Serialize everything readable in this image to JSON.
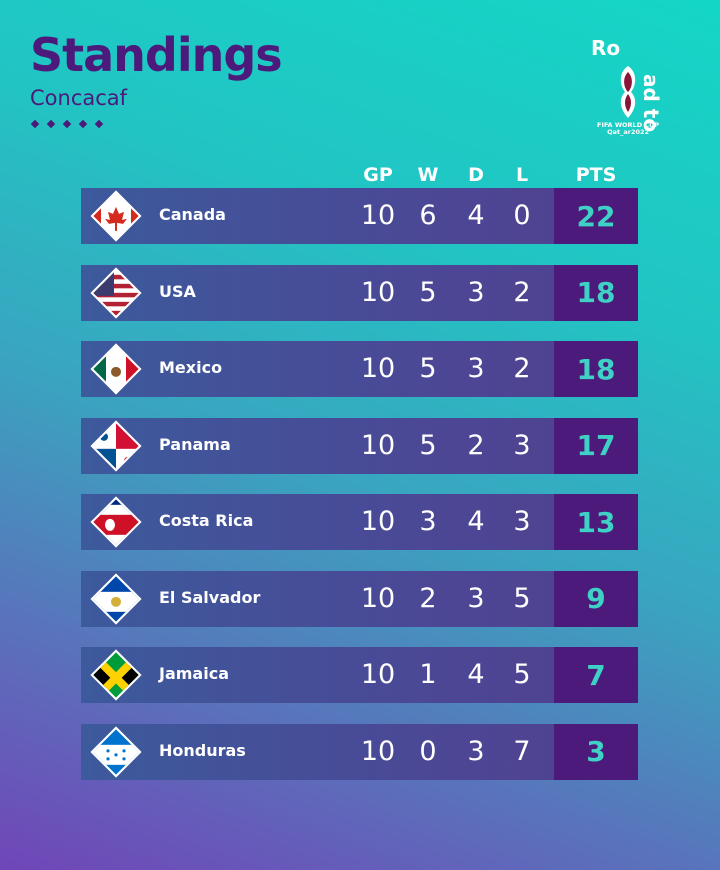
{
  "header": {
    "title": "Standings",
    "subtitle": "Concacaf"
  },
  "logo": {
    "word_top": "Ro",
    "word_side": "ad to",
    "line1": "FIFA WORLD CUP",
    "line2": "Qat_ar2022"
  },
  "columns": {
    "gp": "GP",
    "w": "W",
    "d": "D",
    "l": "L",
    "pts": "PTS"
  },
  "rows": [
    {
      "team": "Canada",
      "flag": "canada-flag",
      "gp": "10",
      "w": "6",
      "d": "4",
      "l": "0",
      "pts": "22"
    },
    {
      "team": "USA",
      "flag": "usa-flag",
      "gp": "10",
      "w": "5",
      "d": "3",
      "l": "2",
      "pts": "18"
    },
    {
      "team": "Mexico",
      "flag": "mexico-flag",
      "gp": "10",
      "w": "5",
      "d": "3",
      "l": "2",
      "pts": "18"
    },
    {
      "team": "Panama",
      "flag": "panama-flag",
      "gp": "10",
      "w": "5",
      "d": "2",
      "l": "3",
      "pts": "17"
    },
    {
      "team": "Costa Rica",
      "flag": "costa-rica-flag",
      "gp": "10",
      "w": "3",
      "d": "4",
      "l": "3",
      "pts": "13"
    },
    {
      "team": "El Salvador",
      "flag": "el-salvador-flag",
      "gp": "10",
      "w": "2",
      "d": "3",
      "l": "5",
      "pts": "9"
    },
    {
      "team": "Jamaica",
      "flag": "jamaica-flag",
      "gp": "10",
      "w": "1",
      "d": "4",
      "l": "5",
      "pts": "7"
    },
    {
      "team": "Honduras",
      "flag": "honduras-flag",
      "gp": "10",
      "w": "0",
      "d": "3",
      "l": "7",
      "pts": "3"
    }
  ],
  "colors": {
    "title": "#4b1a7a",
    "pts_bg": "#4b1a7a",
    "pts_text": "#3fd0c6",
    "row_bg": "#4b4896"
  }
}
